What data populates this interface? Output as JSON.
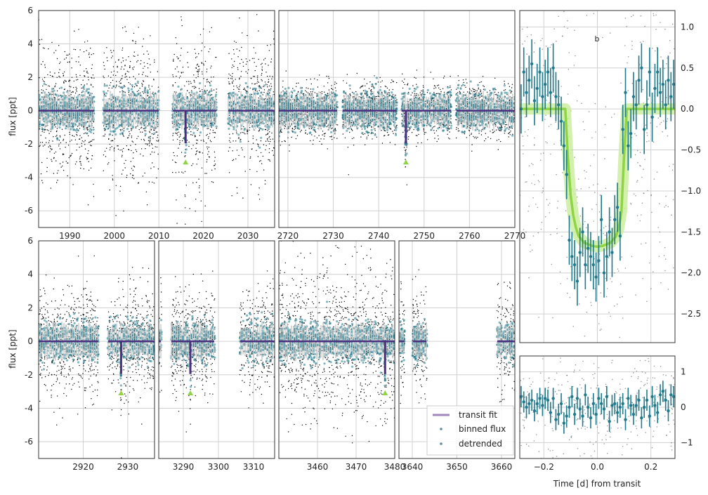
{
  "chart_data": {
    "type": "scatter",
    "labels": {
      "ylabel": "flux [ppt]",
      "xlabel_fold": "Time [d] from transit",
      "planet": "b"
    },
    "legend": {
      "placement": "lower-right of bottom-right light-curve panel",
      "entries": [
        "transit fit",
        "binned flux",
        "detrended"
      ]
    },
    "colors": {
      "raw": "#000000",
      "detrended": "#1f7a8c",
      "binned_band": "#c8c8c8",
      "model": "#4b2f7f",
      "fold_model": "#8fd444",
      "fold_band": "#c9ec9a",
      "marker": "#8fd444",
      "grid": "#d0d0d0"
    },
    "lightcurve_panels": [
      {
        "xlim": [
          1983,
          2036
        ],
        "ylim": [
          -7,
          6
        ],
        "xticks": [
          1990,
          2000,
          2010,
          2020,
          2030
        ],
        "yticks": [
          -6,
          -4,
          -2,
          0,
          2,
          4,
          6
        ],
        "gaps": [
          [
            1995.5,
            1997.5
          ],
          [
            2010,
            2013
          ],
          [
            2023,
            2025.5
          ]
        ],
        "raw_spread": 2.0,
        "transits": [
          2016
        ],
        "transit_depth": -2.3
      },
      {
        "xlim": [
          2718,
          2770
        ],
        "ylim": [
          -7,
          6
        ],
        "xticks": [
          2720,
          2730,
          2740,
          2750,
          2760,
          2770
        ],
        "yticks": [
          -6,
          -4,
          -2,
          0,
          2,
          4,
          6
        ],
        "gaps": [
          [
            2731,
            2732
          ],
          [
            2744,
            2745
          ],
          [
            2756,
            2757
          ]
        ],
        "raw_spread": 0.8,
        "transits": [
          2746
        ],
        "transit_depth": -2.3
      },
      {
        "xlim": [
          2910,
          2936
        ],
        "ylim": [
          -7,
          6
        ],
        "xticks": [
          2920,
          2930
        ],
        "yticks": [
          -6,
          -4,
          -2,
          0,
          2,
          4,
          6
        ],
        "gaps": [
          [
            2923.5,
            2925.5
          ]
        ],
        "raw_spread": 1.6,
        "transits": [
          2928.5
        ],
        "transit_depth": -2.3
      },
      {
        "xlim": [
          3283,
          3316
        ],
        "ylim": [
          -7,
          6
        ],
        "xticks": [
          3290,
          3300,
          3310
        ],
        "yticks": [
          -6,
          -4,
          -2,
          0,
          2,
          4,
          6
        ],
        "gaps": [
          [
            3283.8,
            3286.5
          ],
          [
            3299,
            3306
          ]
        ],
        "raw_spread": 1.6,
        "transits": [
          3292
        ],
        "transit_depth": -2.3
      },
      {
        "xlim": [
          3450,
          3480
        ],
        "ylim": [
          -7,
          6
        ],
        "xticks": [
          3460,
          3470,
          3480
        ],
        "yticks": [
          -6,
          -4,
          -2,
          0,
          2,
          4,
          6
        ],
        "gaps": [],
        "raw_spread": 2.2,
        "transits": [
          3477.5
        ],
        "transit_depth": -2.3
      },
      {
        "xlim": [
          3637,
          3663
        ],
        "ylim": [
          -7,
          6
        ],
        "xticks": [
          3640,
          3650,
          3660
        ],
        "yticks": [
          -6,
          -4,
          -2,
          0,
          2,
          4,
          6
        ],
        "gaps": [
          [
            3638.3,
            3640
          ],
          [
            3643.3,
            3659
          ]
        ],
        "raw_spread": 1.6,
        "transits": [],
        "transit_depth": -2.3
      }
    ],
    "fold": {
      "xlim": [
        -0.29,
        0.29
      ],
      "ylim": [
        -2.85,
        1.2
      ],
      "xticks": [
        -0.2,
        0.0,
        0.2
      ],
      "yticks": [
        -2.5,
        -2.0,
        -1.5,
        -1.0,
        -0.5,
        0.0,
        0.5,
        1.0
      ],
      "model": {
        "x": [
          -0.29,
          -0.12,
          -0.11,
          -0.1,
          -0.09,
          -0.08,
          -0.07,
          -0.05,
          -0.02,
          0.0,
          0.02,
          0.05,
          0.07,
          0.08,
          0.09,
          0.1,
          0.11,
          0.29
        ],
        "y": [
          0,
          0,
          -0.6,
          -1.05,
          -1.3,
          -1.45,
          -1.55,
          -1.63,
          -1.67,
          -1.68,
          -1.67,
          -1.63,
          -1.55,
          -1.45,
          -1.25,
          -0.55,
          0,
          0
        ]
      },
      "binned": {
        "x": [
          -0.285,
          -0.275,
          -0.265,
          -0.255,
          -0.245,
          -0.235,
          -0.225,
          -0.215,
          -0.205,
          -0.195,
          -0.185,
          -0.175,
          -0.165,
          -0.155,
          -0.145,
          -0.135,
          -0.125,
          -0.115,
          -0.105,
          -0.095,
          -0.085,
          -0.075,
          -0.065,
          -0.055,
          -0.045,
          -0.035,
          -0.025,
          -0.015,
          -0.005,
          0.005,
          0.015,
          0.025,
          0.035,
          0.045,
          0.055,
          0.065,
          0.075,
          0.085,
          0.095,
          0.105,
          0.115,
          0.125,
          0.135,
          0.145,
          0.155,
          0.165,
          0.175,
          0.185,
          0.195,
          0.205,
          0.215,
          0.225,
          0.235,
          0.245,
          0.255,
          0.265,
          0.275,
          0.285
        ],
        "y": [
          0.0,
          0.45,
          0.2,
          0.35,
          0.55,
          0.1,
          0.25,
          0.45,
          0.15,
          0.3,
          0.45,
          0.2,
          0.5,
          0.15,
          0.05,
          -0.15,
          -0.45,
          -0.8,
          -1.6,
          -1.8,
          -1.9,
          -2.1,
          -1.75,
          -1.5,
          -1.9,
          -1.7,
          -1.8,
          -1.9,
          -2.05,
          -1.85,
          -1.35,
          -2.0,
          -1.8,
          -1.5,
          -1.75,
          -1.35,
          -1.2,
          -1.55,
          -0.25,
          0.2,
          -0.45,
          -0.3,
          0.15,
          0.05,
          0.35,
          0.5,
          -0.25,
          0.05,
          0.45,
          -0.1,
          0.25,
          0.45,
          0.2,
          0.3,
          0.05,
          0.35,
          0.15,
          0.3
        ],
        "err": 0.3
      },
      "residuals": {
        "ylim": [
          -1.45,
          1.45
        ],
        "yticks": [
          -1,
          0,
          1
        ],
        "y": [
          0.3,
          0.15,
          0.0,
          0.1,
          0.2,
          -0.1,
          0.1,
          0.25,
          0.05,
          0.25,
          0.2,
          -0.15,
          0.25,
          -0.35,
          -0.2,
          0.1,
          -0.45,
          -0.25,
          0.0,
          0.3,
          -0.2,
          0.25,
          -0.05,
          -0.25,
          0.35,
          0.0,
          -0.3,
          0.1,
          -0.2,
          0.25,
          0.1,
          -0.05,
          0.3,
          -0.4,
          0.05,
          0.1,
          -0.15,
          0.0,
          0.1,
          -0.35,
          0.25,
          0.05,
          -0.2,
          0.05,
          0.2,
          -0.3,
          0.0,
          0.2,
          -0.25,
          0.3,
          0.05,
          -0.15,
          0.35,
          0.45,
          0.2,
          -0.1,
          0.35,
          0.3
        ],
        "err": 0.3
      }
    }
  }
}
